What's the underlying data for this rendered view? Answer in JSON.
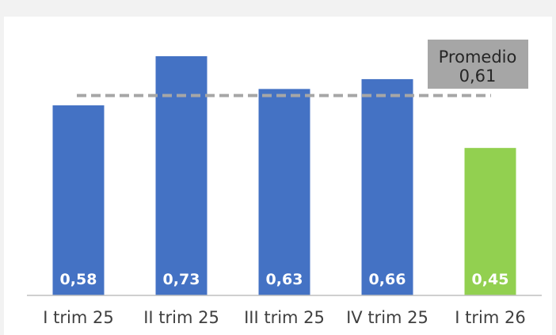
{
  "chart_data": {
    "type": "bar",
    "categories": [
      "I trim 25",
      "II trim 25",
      "III trim 25",
      "IV trim 25",
      "I trim 26"
    ],
    "values": [
      0.58,
      0.73,
      0.63,
      0.66,
      0.45
    ],
    "value_labels": [
      "0,58",
      "0,73",
      "0,63",
      "0,66",
      "0,45"
    ],
    "ylim": [
      0,
      0.8
    ],
    "grid": false,
    "bar_colors": [
      "#4472c4",
      "#4472c4",
      "#4472c4",
      "#4472c4",
      "#92d050"
    ],
    "reference_line": {
      "value": 0.61,
      "style": "dashed",
      "color": "#a6a6a6",
      "label_title": "Promedio",
      "label_value": "0,61"
    }
  }
}
